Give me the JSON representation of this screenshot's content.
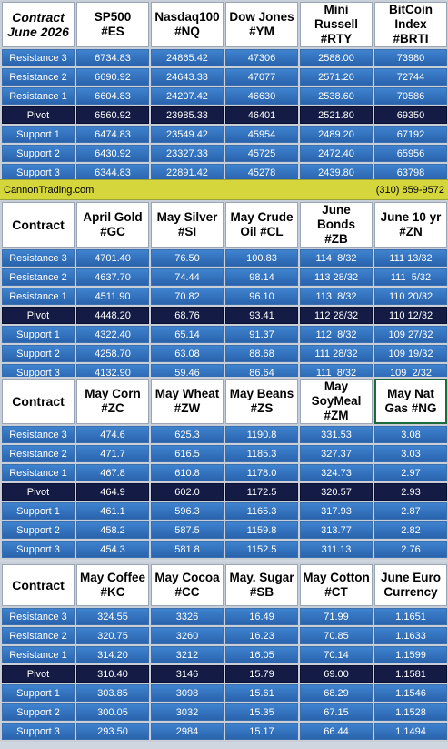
{
  "blocks": [
    {
      "header_label": [
        "Contract",
        "June 2026"
      ],
      "columns": [
        [
          "SP500",
          "#ES"
        ],
        [
          "Nasdaq100",
          "#NQ"
        ],
        [
          "Dow Jones",
          "#YM"
        ],
        [
          "Mini Russell",
          "#RTY"
        ],
        [
          "BitCoin",
          "Index #BRTI"
        ]
      ],
      "rows": [
        {
          "label": "Resistance 3",
          "values": [
            "6734.83",
            "24865.42",
            "47306",
            "2588.00",
            "73980"
          ]
        },
        {
          "label": "Resistance 2",
          "values": [
            "6690.92",
            "24643.33",
            "47077",
            "2571.20",
            "72744"
          ]
        },
        {
          "label": "Resistance 1",
          "values": [
            "6604.83",
            "24207.42",
            "46630",
            "2538.60",
            "70586"
          ]
        },
        {
          "label": "Pivot",
          "values": [
            "6560.92",
            "23985.33",
            "46401",
            "2521.80",
            "69350"
          ]
        },
        {
          "label": "Support 1",
          "values": [
            "6474.83",
            "23549.42",
            "45954",
            "2489.20",
            "67192"
          ]
        },
        {
          "label": "Support 2",
          "values": [
            "6430.92",
            "23327.33",
            "45725",
            "2472.40",
            "65956"
          ]
        },
        {
          "label": "Support 3",
          "values": [
            "6344.83",
            "22891.42",
            "45278",
            "2439.80",
            "63798"
          ]
        }
      ]
    },
    {
      "header_label": [
        "Contract"
      ],
      "columns": [
        [
          "April Gold",
          "#GC"
        ],
        [
          "May Silver",
          "#SI"
        ],
        [
          "May Crude",
          "Oil #CL"
        ],
        [
          "June Bonds",
          "#ZB"
        ],
        [
          "June 10 yr",
          "#ZN"
        ]
      ],
      "rows": [
        {
          "label": "Resistance 3",
          "values": [
            "4701.40",
            "76.50",
            "100.83",
            "114  8/32",
            "111 13/32"
          ]
        },
        {
          "label": "Resistance 2",
          "values": [
            "4637.70",
            "74.44",
            "98.14",
            "113 28/32",
            "111  5/32"
          ]
        },
        {
          "label": "Resistance 1",
          "values": [
            "4511.90",
            "70.82",
            "96.10",
            "113  8/32",
            "110 20/32"
          ]
        },
        {
          "label": "Pivot",
          "values": [
            "4448.20",
            "68.76",
            "93.41",
            "112 28/32",
            "110 12/32"
          ]
        },
        {
          "label": "Support 1",
          "values": [
            "4322.40",
            "65.14",
            "91.37",
            "112  8/32",
            "109 27/32"
          ]
        },
        {
          "label": "Support 2",
          "values": [
            "4258.70",
            "63.08",
            "88.68",
            "111 28/32",
            "109 19/32"
          ]
        },
        {
          "label": "Support 3",
          "values": [
            "4132.90",
            "59.46",
            "86.64",
            "111  8/32",
            "109  2/32"
          ]
        }
      ]
    },
    {
      "header_label": [
        "Contract"
      ],
      "columns": [
        [
          "May Corn",
          "#ZC"
        ],
        [
          "May  Wheat",
          "#ZW"
        ],
        [
          "May Beans",
          "#ZS"
        ],
        [
          "May",
          "SoyMeal",
          "#ZM"
        ],
        [
          "May Nat",
          "Gas #NG"
        ]
      ],
      "rows": [
        {
          "label": "Resistance 3",
          "values": [
            "474.6",
            "625.3",
            "1190.8",
            "331.53",
            "3.08"
          ]
        },
        {
          "label": "Resistance 2",
          "values": [
            "471.7",
            "616.5",
            "1185.3",
            "327.37",
            "3.03"
          ]
        },
        {
          "label": "Resistance 1",
          "values": [
            "467.8",
            "610.8",
            "1178.0",
            "324.73",
            "2.97"
          ]
        },
        {
          "label": "Pivot",
          "values": [
            "464.9",
            "602.0",
            "1172.5",
            "320.57",
            "2.93"
          ]
        },
        {
          "label": "Support 1",
          "values": [
            "461.1",
            "596.3",
            "1165.3",
            "317.93",
            "2.87"
          ]
        },
        {
          "label": "Support 2",
          "values": [
            "458.2",
            "587.5",
            "1159.8",
            "313.77",
            "2.82"
          ]
        },
        {
          "label": "Support 3",
          "values": [
            "454.3",
            "581.8",
            "1152.5",
            "311.13",
            "2.76"
          ]
        }
      ]
    },
    {
      "header_label": [
        "Contract"
      ],
      "columns": [
        [
          "May Coffee",
          "#KC"
        ],
        [
          "May Cocoa",
          "#CC"
        ],
        [
          "May. Sugar",
          "#SB"
        ],
        [
          "May Cotton",
          "#CT"
        ],
        [
          "June Euro",
          "Currency"
        ]
      ],
      "rows": [
        {
          "label": "Resistance 3",
          "values": [
            "324.55",
            "3326",
            "16.49",
            "71.99",
            "1.1651"
          ]
        },
        {
          "label": "Resistance 2",
          "values": [
            "320.75",
            "3260",
            "16.23",
            "70.85",
            "1.1633"
          ]
        },
        {
          "label": "Resistance 1",
          "values": [
            "314.20",
            "3212",
            "16.05",
            "70.14",
            "1.1599"
          ]
        },
        {
          "label": "Pivot",
          "values": [
            "310.40",
            "3146",
            "15.79",
            "69.00",
            "1.1581"
          ]
        },
        {
          "label": "Support 1",
          "values": [
            "303.85",
            "3098",
            "15.61",
            "68.29",
            "1.1546"
          ]
        },
        {
          "label": "Support 2",
          "values": [
            "300.05",
            "3032",
            "15.35",
            "67.15",
            "1.1528"
          ]
        },
        {
          "label": "Support 3",
          "values": [
            "293.50",
            "2984",
            "15.17",
            "66.44",
            "1.1494"
          ]
        }
      ]
    }
  ],
  "banner": {
    "left": "CannonTrading.com",
    "right": "(310) 859-9572"
  },
  "highlight": {
    "block": 2,
    "column": 4,
    "border_color": "#1e6a3a"
  },
  "colors": {
    "row": "#3474c0",
    "pivot": "#141c45",
    "banner": "#d4d63c"
  }
}
